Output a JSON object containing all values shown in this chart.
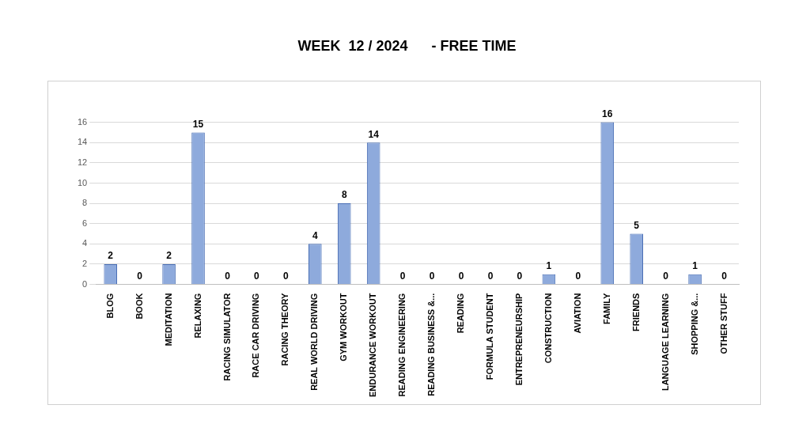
{
  "chart_data": {
    "type": "bar",
    "title": "WEEK  12 / 2024      - FREE TIME",
    "categories": [
      "BLOG",
      "BOOK",
      "MEDITATION",
      "RELAXING",
      "RACING SIMULATOR",
      "RACE CAR DRIVING",
      "RACING THEORY",
      "REAL WORLD DRIVING",
      "GYM WORKOUT",
      "ENDURANCE WORKOUT",
      "READING ENGINEERING",
      "READING BUSINESS &...",
      "READING",
      "FORMULA STUDENT",
      "ENTREPRENEURSHIP",
      "CONSTRUCTION",
      "AVIATION",
      "FAMILY",
      "FRIENDS",
      "LANGUAGE LEARNING",
      "SHOPPING &...",
      "OTHER STUFF"
    ],
    "values": [
      2,
      0,
      2,
      15,
      0,
      0,
      0,
      4,
      8,
      14,
      0,
      0,
      0,
      0,
      0,
      1,
      0,
      16,
      5,
      0,
      1,
      0
    ],
    "color": "#8eaadc",
    "ylim": [
      0,
      16
    ],
    "yticks": [
      0,
      2,
      4,
      6,
      8,
      10,
      12,
      14,
      16
    ],
    "grid": "y",
    "data_labels": true,
    "legend": false
  }
}
